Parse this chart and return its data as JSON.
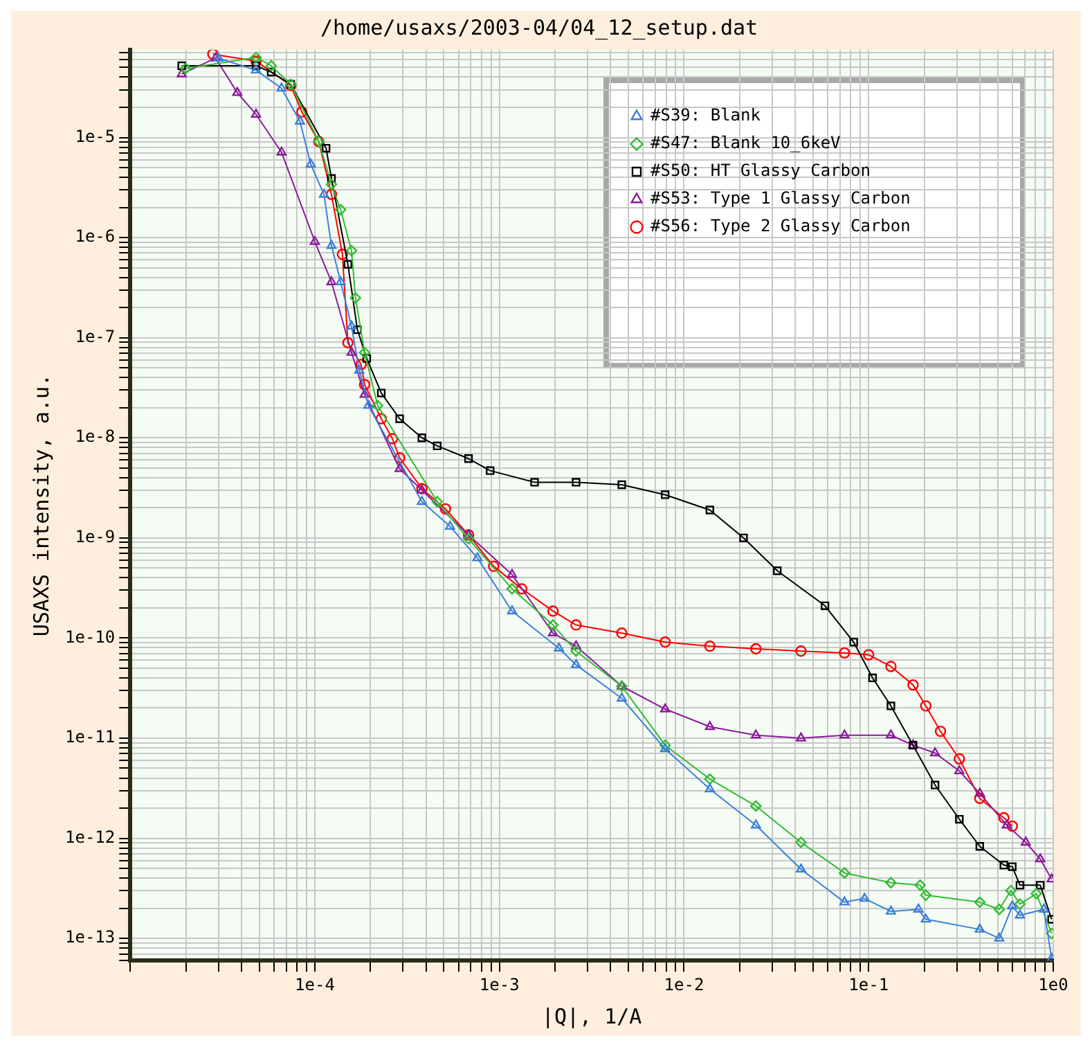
{
  "chart_data": {
    "type": "line",
    "title": "/home/usaxs/2003-04/04_12_setup.dat",
    "xlabel": "|Q|, 1/A",
    "ylabel": "USAXS intensity, a.u.",
    "log": "xy",
    "grid": true,
    "legend": "top right",
    "line_style": "solid",
    "xlim": [
      1e-05,
      1
    ],
    "ylim": [
      6e-14,
      7.5e-05
    ],
    "xticks": [
      {
        "value": 1e-05,
        "label": null
      },
      {
        "value": 2e-05,
        "label": null
      },
      {
        "value": 3e-05,
        "label": null
      },
      {
        "value": 4e-05,
        "label": null
      },
      {
        "value": 5e-05,
        "label": null
      },
      {
        "value": 6e-05,
        "label": null
      },
      {
        "value": 7e-05,
        "label": null
      },
      {
        "value": 8e-05,
        "label": null
      },
      {
        "value": 9e-05,
        "label": null
      },
      {
        "value": 0.0001,
        "label": "1e-4"
      },
      {
        "value": 0.0002,
        "label": null
      },
      {
        "value": 0.0003,
        "label": null
      },
      {
        "value": 0.0004,
        "label": null
      },
      {
        "value": 0.0005,
        "label": null
      },
      {
        "value": 0.0006,
        "label": null
      },
      {
        "value": 0.0007,
        "label": null
      },
      {
        "value": 0.0008,
        "label": null
      },
      {
        "value": 0.0009,
        "label": null
      },
      {
        "value": 0.001,
        "label": "1e-3"
      },
      {
        "value": 0.002,
        "label": null
      },
      {
        "value": 0.003,
        "label": null
      },
      {
        "value": 0.004,
        "label": null
      },
      {
        "value": 0.005,
        "label": null
      },
      {
        "value": 0.006,
        "label": null
      },
      {
        "value": 0.007,
        "label": null
      },
      {
        "value": 0.008,
        "label": null
      },
      {
        "value": 0.009,
        "label": null
      },
      {
        "value": 0.01,
        "label": "1e-2"
      },
      {
        "value": 0.02,
        "label": null
      },
      {
        "value": 0.03,
        "label": null
      },
      {
        "value": 0.04,
        "label": null
      },
      {
        "value": 0.05,
        "label": null
      },
      {
        "value": 0.06,
        "label": null
      },
      {
        "value": 0.07,
        "label": null
      },
      {
        "value": 0.08,
        "label": null
      },
      {
        "value": 0.09,
        "label": null
      },
      {
        "value": 0.1,
        "label": "1e-1"
      },
      {
        "value": 0.2,
        "label": null
      },
      {
        "value": 0.3,
        "label": null
      },
      {
        "value": 0.4,
        "label": null
      },
      {
        "value": 0.5,
        "label": null
      },
      {
        "value": 0.6,
        "label": null
      },
      {
        "value": 0.7,
        "label": null
      },
      {
        "value": 0.8,
        "label": null
      },
      {
        "value": 0.9,
        "label": null
      },
      {
        "value": 1,
        "label": "1e0"
      }
    ],
    "yticks": [
      {
        "value": 6e-14,
        "label": null
      },
      {
        "value": 7e-14,
        "label": null
      },
      {
        "value": 8e-14,
        "label": null
      },
      {
        "value": 9e-14,
        "label": null
      },
      {
        "value": 1e-13,
        "label": "1e-13"
      },
      {
        "value": 2e-13,
        "label": null
      },
      {
        "value": 3e-13,
        "label": null
      },
      {
        "value": 4e-13,
        "label": null
      },
      {
        "value": 5e-13,
        "label": null
      },
      {
        "value": 6e-13,
        "label": null
      },
      {
        "value": 7e-13,
        "label": null
      },
      {
        "value": 8e-13,
        "label": null
      },
      {
        "value": 9e-13,
        "label": null
      },
      {
        "value": 1e-12,
        "label": "1e-12"
      },
      {
        "value": 2e-12,
        "label": null
      },
      {
        "value": 3e-12,
        "label": null
      },
      {
        "value": 4e-12,
        "label": null
      },
      {
        "value": 5e-12,
        "label": null
      },
      {
        "value": 6e-12,
        "label": null
      },
      {
        "value": 7e-12,
        "label": null
      },
      {
        "value": 8e-12,
        "label": null
      },
      {
        "value": 9e-12,
        "label": null
      },
      {
        "value": 1e-11,
        "label": "1e-11"
      },
      {
        "value": 2e-11,
        "label": null
      },
      {
        "value": 3e-11,
        "label": null
      },
      {
        "value": 4e-11,
        "label": null
      },
      {
        "value": 5e-11,
        "label": null
      },
      {
        "value": 6e-11,
        "label": null
      },
      {
        "value": 7e-11,
        "label": null
      },
      {
        "value": 8e-11,
        "label": null
      },
      {
        "value": 9e-11,
        "label": null
      },
      {
        "value": 1e-10,
        "label": "1e-10"
      },
      {
        "value": 2e-10,
        "label": null
      },
      {
        "value": 3e-10,
        "label": null
      },
      {
        "value": 4e-10,
        "label": null
      },
      {
        "value": 5e-10,
        "label": null
      },
      {
        "value": 6e-10,
        "label": null
      },
      {
        "value": 7e-10,
        "label": null
      },
      {
        "value": 8e-10,
        "label": null
      },
      {
        "value": 9e-10,
        "label": null
      },
      {
        "value": 1e-09,
        "label": "1e-9"
      },
      {
        "value": 2e-09,
        "label": null
      },
      {
        "value": 3e-09,
        "label": null
      },
      {
        "value": 4e-09,
        "label": null
      },
      {
        "value": 5e-09,
        "label": null
      },
      {
        "value": 6e-09,
        "label": null
      },
      {
        "value": 7e-09,
        "label": null
      },
      {
        "value": 8e-09,
        "label": null
      },
      {
        "value": 9e-09,
        "label": null
      },
      {
        "value": 1e-08,
        "label": "1e-8"
      },
      {
        "value": 2e-08,
        "label": null
      },
      {
        "value": 3e-08,
        "label": null
      },
      {
        "value": 4e-08,
        "label": null
      },
      {
        "value": 5e-08,
        "label": null
      },
      {
        "value": 6e-08,
        "label": null
      },
      {
        "value": 7e-08,
        "label": null
      },
      {
        "value": 8e-08,
        "label": null
      },
      {
        "value": 9e-08,
        "label": null
      },
      {
        "value": 1e-07,
        "label": "1e-7"
      },
      {
        "value": 2e-07,
        "label": null
      },
      {
        "value": 3e-07,
        "label": null
      },
      {
        "value": 4e-07,
        "label": null
      },
      {
        "value": 5e-07,
        "label": null
      },
      {
        "value": 6e-07,
        "label": null
      },
      {
        "value": 7e-07,
        "label": null
      },
      {
        "value": 8e-07,
        "label": null
      },
      {
        "value": 9e-07,
        "label": null
      },
      {
        "value": 1e-06,
        "label": "1e-6"
      },
      {
        "value": 2e-06,
        "label": null
      },
      {
        "value": 3e-06,
        "label": null
      },
      {
        "value": 4e-06,
        "label": null
      },
      {
        "value": 5e-06,
        "label": null
      },
      {
        "value": 6e-06,
        "label": null
      },
      {
        "value": 7e-06,
        "label": null
      },
      {
        "value": 8e-06,
        "label": null
      },
      {
        "value": 9e-06,
        "label": null
      },
      {
        "value": 1e-05,
        "label": "1e-5"
      },
      {
        "value": 2e-05,
        "label": null
      },
      {
        "value": 3e-05,
        "label": null
      },
      {
        "value": 4e-05,
        "label": null
      },
      {
        "value": 5e-05,
        "label": null
      },
      {
        "value": 6e-05,
        "label": null
      },
      {
        "value": 7e-05,
        "label": null
      }
    ],
    "series": [
      {
        "name": "#S39: Blank",
        "color": "#3c7fd8",
        "marker": "triangle",
        "x": [
          3e-05,
          4.8e-05,
          6.6e-05,
          8.3e-05,
          9.5e-05,
          0.000112,
          0.000123,
          0.000138,
          0.000158,
          0.000174,
          0.000195,
          0.00038,
          0.00054,
          0.00076,
          0.00117,
          0.0021,
          0.0026,
          0.0046,
          0.0079,
          0.0138,
          0.0245,
          0.043,
          0.074,
          0.095,
          0.132,
          0.186,
          0.204,
          0.4,
          0.51,
          0.6,
          0.66,
          0.89,
          0.98
        ],
        "values": [
          6.2e-05,
          4.7e-05,
          3.1e-05,
          1.45e-05,
          5.4e-06,
          2.7e-06,
          8.3e-07,
          3.6e-07,
          1.3e-07,
          4.7e-08,
          2.1e-08,
          2.3e-09,
          1.3e-09,
          6.3e-10,
          1.86e-10,
          7.9e-11,
          5.4e-11,
          2.5e-11,
          7.8e-12,
          3.1e-12,
          1.35e-12,
          4.9e-13,
          2.3e-13,
          2.5e-13,
          1.86e-13,
          1.95e-13,
          1.55e-13,
          1.23e-13,
          1e-13,
          2.1e-13,
          1.7e-13,
          1.95e-13,
          6.3e-14
        ]
      },
      {
        "name": "#S47: Blank 10_6keV",
        "color": "#33bb33",
        "marker": "diamond",
        "x": [
          2e-05,
          4.8e-05,
          5.8e-05,
          7.4e-05,
          0.000105,
          0.000123,
          0.000138,
          0.000158,
          0.000166,
          0.000186,
          0.000219,
          0.00046,
          0.00068,
          0.00117,
          0.00195,
          0.0026,
          0.0046,
          0.0079,
          0.0138,
          0.0245,
          0.043,
          0.074,
          0.132,
          0.19,
          0.204,
          0.4,
          0.51,
          0.59,
          0.66,
          0.81,
          0.98
        ],
        "values": [
          4.9e-05,
          6.3e-05,
          5.2e-05,
          3.4e-05,
          9.1e-06,
          3.4e-06,
          1.9e-06,
          7.4e-07,
          2.5e-07,
          7.1e-08,
          2.1e-08,
          2.3e-09,
          9.8e-10,
          3.1e-10,
          1.35e-10,
          7.4e-11,
          3.3e-11,
          8.5e-12,
          3.9e-12,
          2.1e-12,
          9.1e-13,
          4.5e-13,
          3.6e-13,
          3.4e-13,
          2.7e-13,
          2.3e-13,
          1.95e-13,
          3e-13,
          2.2e-13,
          2.8e-13,
          1.12e-13
        ]
      },
      {
        "name": "#S50: HT Glassy Carbon",
        "color": "#000000",
        "marker": "square",
        "x": [
          1.9e-05,
          4.8e-05,
          5.8e-05,
          7.4e-05,
          0.000115,
          0.000123,
          0.000151,
          0.00017,
          0.000191,
          0.000229,
          0.000288,
          0.00038,
          0.00046,
          0.00068,
          0.00089,
          0.00155,
          0.0026,
          0.0046,
          0.0079,
          0.0138,
          0.021,
          0.032,
          0.058,
          0.083,
          0.105,
          0.132,
          0.174,
          0.229,
          0.31,
          0.4,
          0.54,
          0.6,
          0.66,
          0.85,
          0.98
        ],
        "values": [
          5.2e-05,
          5.2e-05,
          4.5e-05,
          3.4e-05,
          7.8e-06,
          3.9e-06,
          5.4e-07,
          1.2e-07,
          6.2e-08,
          2.8e-08,
          1.55e-08,
          1e-08,
          8.3e-09,
          6.2e-09,
          4.7e-09,
          3.6e-09,
          3.6e-09,
          3.4e-09,
          2.7e-09,
          1.9e-09,
          1e-09,
          4.7e-10,
          2.1e-10,
          9.1e-11,
          4e-11,
          2.1e-11,
          8.5e-12,
          3.4e-12,
          1.55e-12,
          8.3e-13,
          5.4e-13,
          5.2e-13,
          3.4e-13,
          3.4e-13,
          1.55e-13
        ]
      },
      {
        "name": "#S53: Type 1 Glassy Carbon",
        "color": "#8b1a9b",
        "marker": "triangle",
        "x": [
          1.9e-05,
          2.9e-05,
          3.8e-05,
          4.8e-05,
          6.6e-05,
          0.0001,
          0.000123,
          0.000158,
          0.000186,
          0.000288,
          0.00038,
          0.00068,
          0.00117,
          0.00195,
          0.0026,
          0.0046,
          0.0079,
          0.0138,
          0.0245,
          0.043,
          0.074,
          0.132,
          0.174,
          0.229,
          0.31,
          0.4,
          0.56,
          0.71,
          0.85,
          0.98
        ],
        "values": [
          4.3e-05,
          6.2e-05,
          2.8e-05,
          1.7e-05,
          7.1e-06,
          9.1e-07,
          3.6e-07,
          7.1e-08,
          2.7e-08,
          4.9e-09,
          3e-09,
          1.07e-09,
          4.3e-10,
          1.12e-10,
          8.3e-11,
          3.3e-11,
          1.95e-11,
          1.3e-11,
          1.07e-11,
          1e-11,
          1.07e-11,
          1.07e-11,
          8.5e-12,
          7.1e-12,
          4.7e-12,
          2.8e-12,
          1.35e-12,
          9.1e-13,
          6.2e-13,
          3.9e-13
        ]
      },
      {
        "name": "#S56: Type 2 Glassy Carbon",
        "color": "#ff0000",
        "marker": "circle",
        "x": [
          2.8e-05,
          4.8e-05,
          7.4e-05,
          8.5e-05,
          0.000105,
          0.000123,
          0.000141,
          0.000151,
          0.000178,
          0.000186,
          0.000229,
          0.000263,
          0.000288,
          0.00038,
          0.00051,
          0.00068,
          0.00093,
          0.00132,
          0.00195,
          0.0026,
          0.0046,
          0.0079,
          0.0138,
          0.0245,
          0.043,
          0.074,
          0.1,
          0.132,
          0.174,
          0.204,
          0.245,
          0.31,
          0.4,
          0.54,
          0.6
        ],
        "values": [
          6.8e-05,
          5.8e-05,
          3.3e-05,
          1.8e-05,
          9.1e-06,
          2.7e-06,
          6.8e-07,
          8.9e-08,
          5.4e-08,
          3.4e-08,
          1.55e-08,
          9.8e-09,
          6.3e-09,
          3.1e-09,
          1.95e-09,
          1.07e-09,
          5.2e-10,
          3.1e-10,
          1.86e-10,
          1.35e-10,
          1.12e-10,
          9.1e-11,
          8.3e-11,
          7.8e-11,
          7.4e-11,
          7.1e-11,
          6.8e-11,
          5.2e-11,
          3.4e-11,
          2.1e-11,
          1.17e-11,
          6.2e-12,
          2.5e-12,
          1.6e-12,
          1.32e-12
        ]
      }
    ]
  }
}
